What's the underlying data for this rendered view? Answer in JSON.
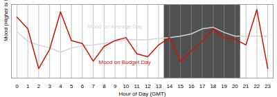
{
  "chart_data": {
    "type": "line",
    "xlabel": "Hour of Day (GMT)",
    "ylabel": "Mood (Higher is Happier)",
    "x": [
      0,
      1,
      2,
      3,
      4,
      5,
      6,
      7,
      8,
      9,
      10,
      11,
      12,
      13,
      14,
      15,
      16,
      17,
      18,
      19,
      20,
      21,
      22,
      23
    ],
    "series": [
      {
        "name": "Mood on Average Day",
        "color": "#d4d4d4",
        "values": [
          0.68,
          0.55,
          0.5,
          0.46,
          0.4,
          0.46,
          0.49,
          0.5,
          0.52,
          0.55,
          0.57,
          0.57,
          0.57,
          0.59,
          0.6,
          0.62,
          0.65,
          0.72,
          0.74,
          0.67,
          0.62,
          0.62,
          0.62,
          0.62
        ]
      },
      {
        "name": "Mood on Budget Day",
        "color": "#cc1100",
        "values": [
          0.88,
          0.72,
          0.18,
          0.44,
          0.95,
          0.56,
          0.52,
          0.28,
          0.48,
          0.56,
          0.6,
          0.38,
          0.34,
          0.5,
          0.6,
          0.28,
          0.42,
          0.55,
          0.72,
          0.6,
          0.58,
          0.5,
          0.98,
          0.18
        ]
      }
    ],
    "annotations": [
      {
        "text": "Mood on Average Day",
        "x": 6.5,
        "y": 0.73,
        "color": "#d4d4d4"
      },
      {
        "text": "Mood on Budget Day",
        "x": 7.5,
        "y": 0.24,
        "color": "#cc1100"
      }
    ],
    "highlight": {
      "start": 14,
      "end": 20,
      "color": "#505050"
    },
    "xlim": [
      -0.5,
      23.5
    ],
    "xticks": [
      0,
      1,
      2,
      3,
      4,
      5,
      6,
      7,
      8,
      9,
      10,
      11,
      12,
      13,
      14,
      15,
      16,
      17,
      18,
      19,
      20,
      21,
      22,
      23
    ],
    "ylim": [
      0.05,
      1.05
    ],
    "yticks": [],
    "tick_labels": "x",
    "grid": true
  }
}
